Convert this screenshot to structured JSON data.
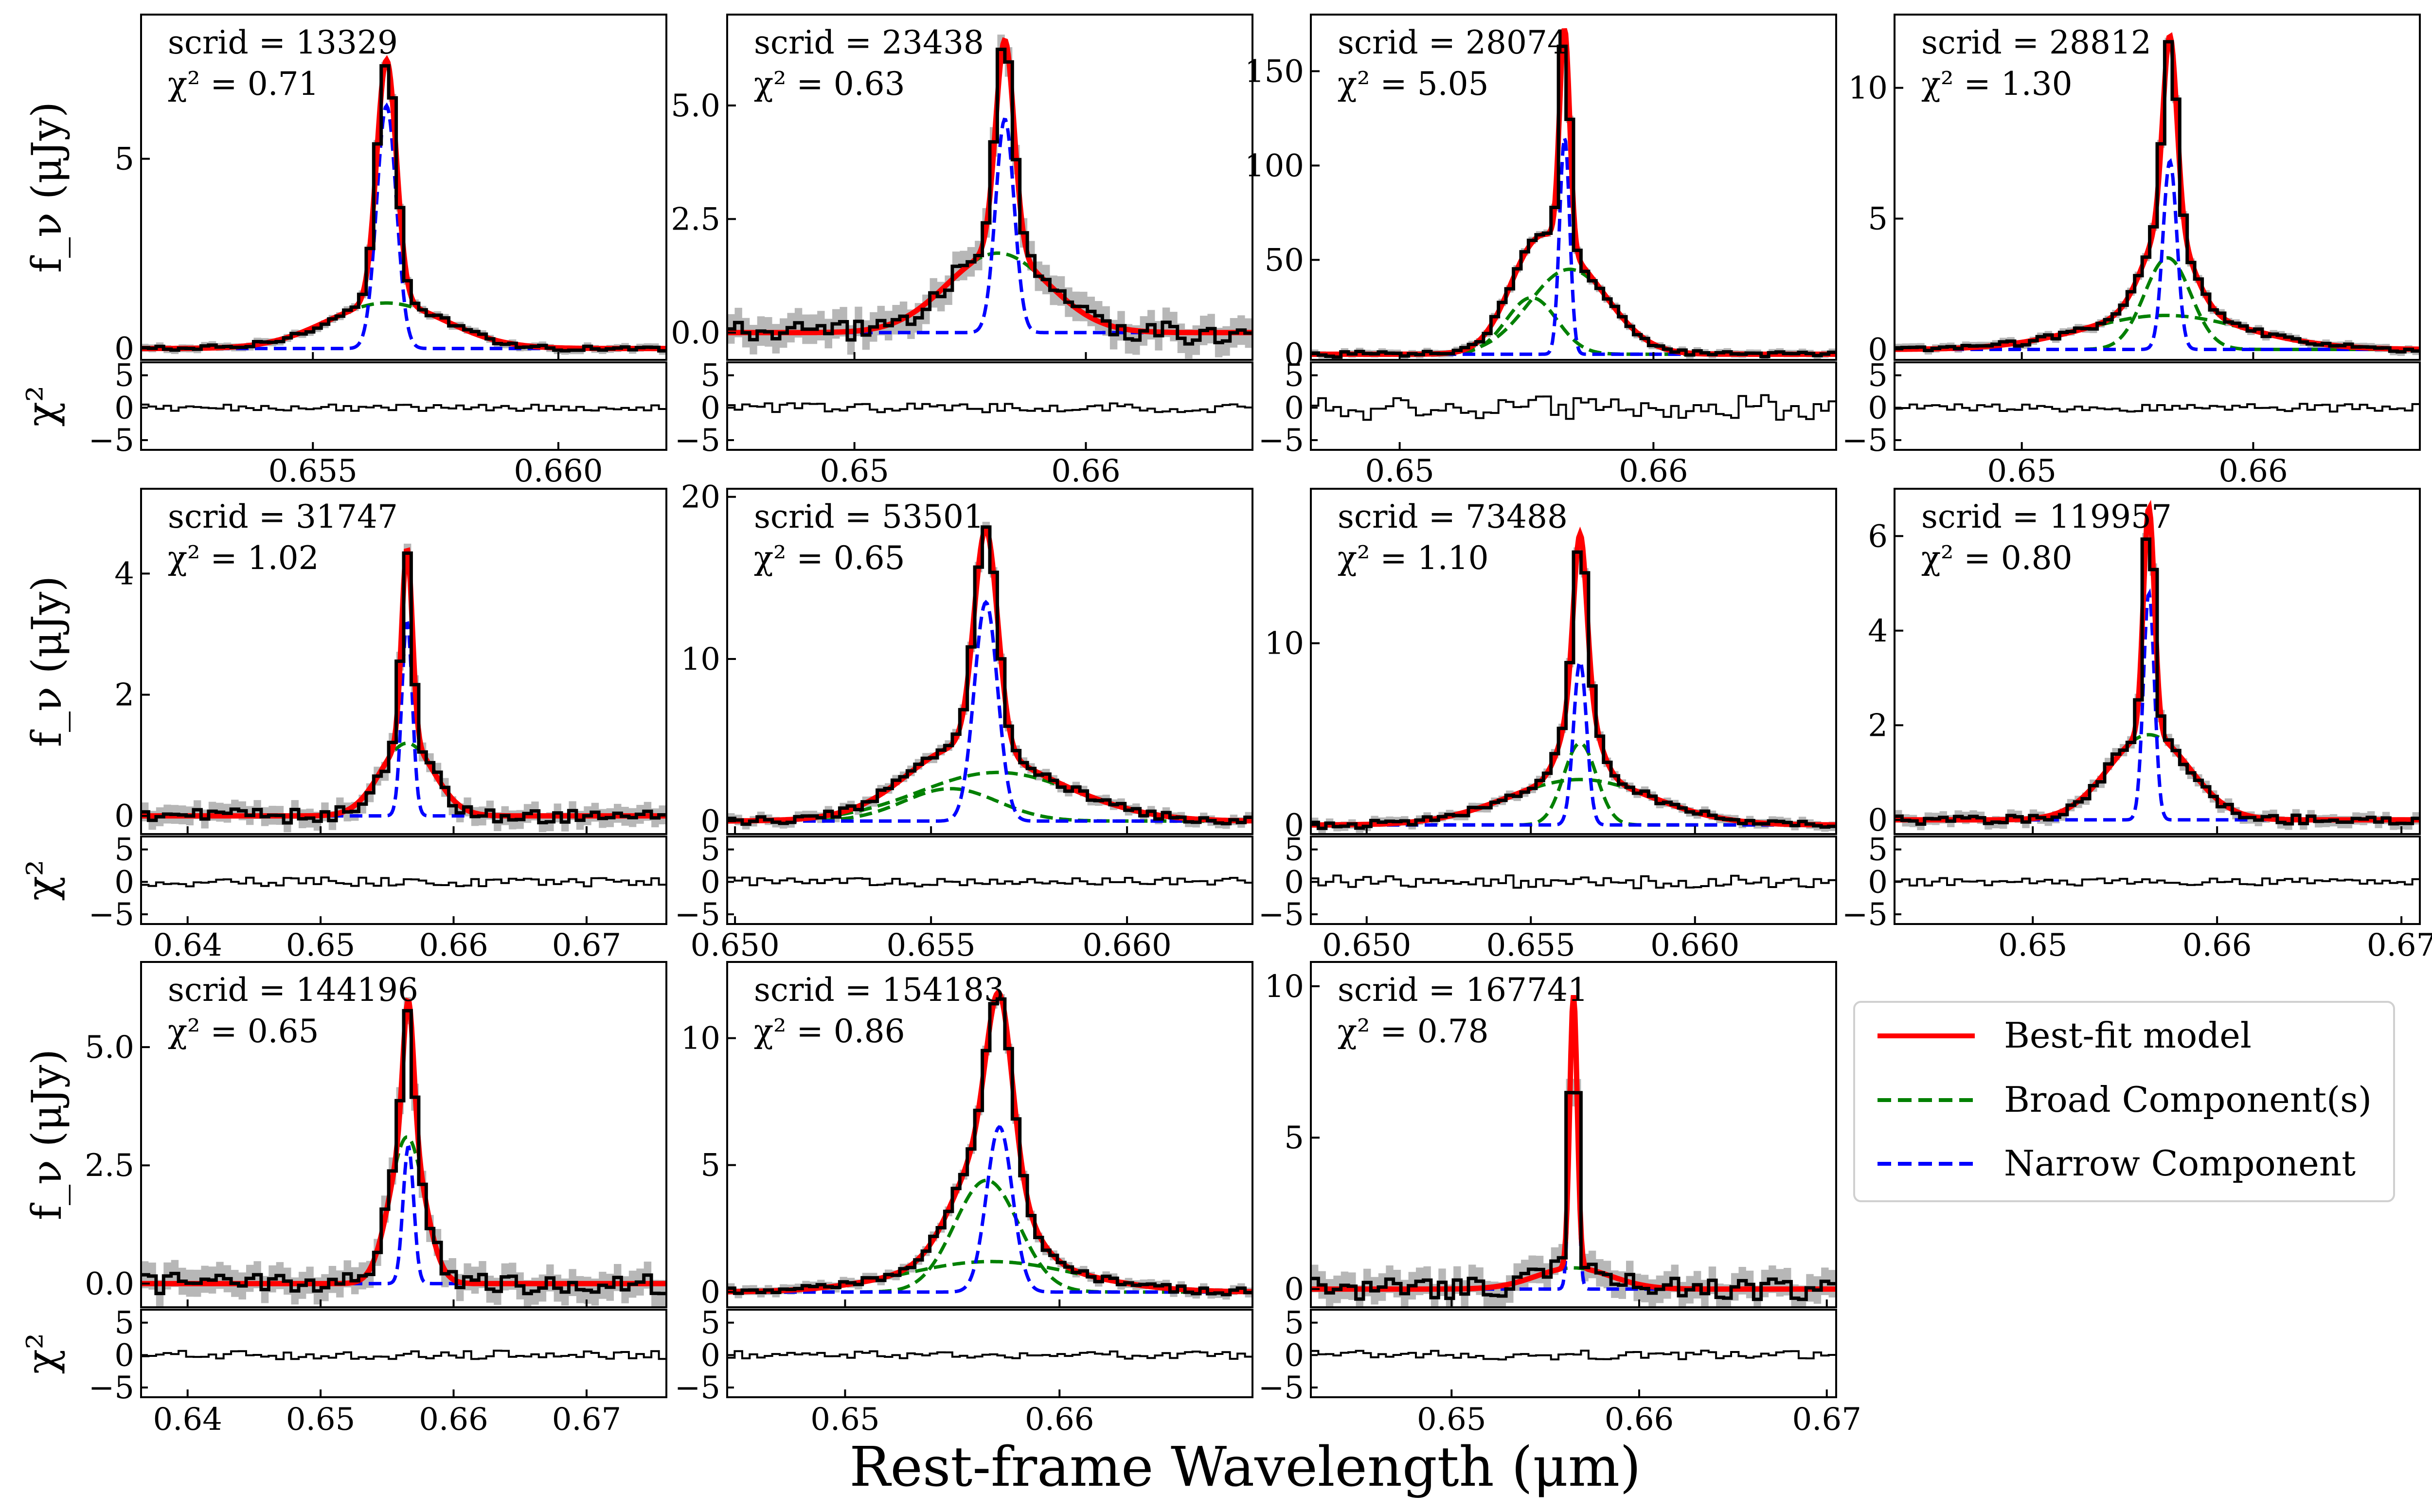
{
  "figure": {
    "xlabel": "Rest-frame Wavelength (μm)",
    "ylabel_flux": "f_ν (μJy)",
    "ylabel_resid": "χ²",
    "legend": [
      {
        "label": "Best-fit model",
        "color": "#ff0000",
        "dash": "solid"
      },
      {
        "label": "Broad Component(s)",
        "color": "#008000",
        "dash": "dashed"
      },
      {
        "label": "Narrow Component",
        "color": "#0000ff",
        "dash": "dashed"
      }
    ],
    "colors": {
      "model": "#ff0000",
      "broad": "#008000",
      "narrow": "#0000ff",
      "data": "#000000",
      "error_band": "#999999"
    }
  },
  "chart_data": [
    {
      "type": "line",
      "scrid": "13329",
      "chi2": "0.71",
      "xlim": [
        0.6515,
        0.6622
      ],
      "xticks": [
        0.655,
        0.66
      ],
      "xtick_labels": [
        "0.655",
        "0.660"
      ],
      "ylim": [
        -0.3,
        8.8
      ],
      "yticks": [
        0,
        5
      ],
      "ytick_labels": [
        "0",
        "5"
      ],
      "resid_ylim": [
        -6.5,
        7
      ],
      "resid_yticks": [
        -5,
        0,
        5
      ],
      "resid_ytick_labels": [
        "−5",
        "0",
        "5"
      ],
      "center": 0.6564,
      "narrow": [
        {
          "amp": 6.4,
          "center": 0.6565,
          "sigma": 0.0002
        }
      ],
      "broad": [
        {
          "amp": 1.2,
          "center": 0.6565,
          "sigma": 0.0012
        }
      ],
      "data_scale": 1.0,
      "noise": 0.08,
      "resid_amp": 0.5
    },
    {
      "type": "line",
      "scrid": "23438",
      "chi2": "0.63",
      "xlim": [
        0.6445,
        0.6672
      ],
      "xticks": [
        0.65,
        0.66
      ],
      "xtick_labels": [
        "0.65",
        "0.66"
      ],
      "ylim": [
        -0.6,
        7.0
      ],
      "yticks": [
        0,
        2.5,
        5
      ],
      "ytick_labels": [
        "0.0",
        "2.5",
        "5.0"
      ],
      "resid_ylim": [
        -6.5,
        7
      ],
      "resid_yticks": [
        -5,
        0,
        5
      ],
      "resid_ytick_labels": [
        "−5",
        "0",
        "5"
      ],
      "center": 0.6564,
      "narrow": [
        {
          "amp": 4.7,
          "center": 0.6565,
          "sigma": 0.0004
        }
      ],
      "broad": [
        {
          "amp": 1.75,
          "center": 0.6562,
          "sigma": 0.0022
        }
      ],
      "data_scale": 1.0,
      "noise": 0.25,
      "resid_amp": 0.7
    },
    {
      "type": "line",
      "scrid": "28074",
      "chi2": "5.05",
      "xlim": [
        0.6465,
        0.6672
      ],
      "xticks": [
        0.65,
        0.66
      ],
      "xtick_labels": [
        "0.65",
        "0.66"
      ],
      "ylim": [
        -3,
        180
      ],
      "yticks": [
        0,
        50,
        100,
        150
      ],
      "ytick_labels": [
        "0",
        "50",
        "100",
        "150"
      ],
      "resid_ylim": [
        -6.5,
        7
      ],
      "resid_yticks": [
        -5,
        0,
        5
      ],
      "resid_ytick_labels": [
        "−5",
        "0",
        "5"
      ],
      "center": 0.6565,
      "narrow": [
        {
          "amp": 115,
          "center": 0.6565,
          "sigma": 0.0002
        }
      ],
      "broad": [
        {
          "amp": 45,
          "center": 0.6567,
          "sigma": 0.0016
        },
        {
          "amp": 30,
          "center": 0.6552,
          "sigma": 0.001
        }
      ],
      "data_scale": 1.0,
      "noise": 1.5,
      "resid_amp": 2.0
    },
    {
      "type": "line",
      "scrid": "28812",
      "chi2": "1.30",
      "xlim": [
        0.6445,
        0.6672
      ],
      "xticks": [
        0.65,
        0.66
      ],
      "xtick_labels": [
        "0.65",
        "0.66"
      ],
      "ylim": [
        -0.4,
        12.8
      ],
      "yticks": [
        0,
        5,
        10
      ],
      "ytick_labels": [
        "0",
        "5",
        "10"
      ],
      "resid_ylim": [
        -6.5,
        7
      ],
      "resid_yticks": [
        -5,
        0,
        5
      ],
      "resid_ytick_labels": [
        "−5",
        "0",
        "5"
      ],
      "center": 0.6563,
      "narrow": [
        {
          "amp": 7.2,
          "center": 0.6564,
          "sigma": 0.0003
        }
      ],
      "broad": [
        {
          "amp": 3.5,
          "center": 0.6563,
          "sigma": 0.001
        },
        {
          "amp": 1.3,
          "center": 0.6562,
          "sigma": 0.0035
        }
      ],
      "data_scale": 1.0,
      "noise": 0.12,
      "resid_amp": 0.6
    },
    {
      "type": "line",
      "scrid": "31747",
      "chi2": "1.02",
      "xlim": [
        0.6365,
        0.676
      ],
      "xticks": [
        0.64,
        0.65,
        0.66,
        0.67
      ],
      "xtick_labels": [
        "0.64",
        "0.65",
        "0.66",
        "0.67"
      ],
      "ylim": [
        -0.3,
        5.4
      ],
      "yticks": [
        0,
        2,
        4
      ],
      "ytick_labels": [
        "0",
        "2",
        "4"
      ],
      "resid_ylim": [
        -6.5,
        7
      ],
      "resid_yticks": [
        -5,
        0,
        5
      ],
      "resid_ytick_labels": [
        "−5",
        "0",
        "5"
      ],
      "center": 0.6565,
      "narrow": [
        {
          "amp": 3.2,
          "center": 0.6565,
          "sigma": 0.0004
        }
      ],
      "broad": [
        {
          "amp": 1.2,
          "center": 0.6565,
          "sigma": 0.002
        }
      ],
      "data_scale": 1.0,
      "noise": 0.12,
      "resid_amp": 0.7
    },
    {
      "type": "line",
      "scrid": "53501",
      "chi2": "0.65",
      "xlim": [
        0.6498,
        0.6632
      ],
      "xticks": [
        0.65,
        0.655,
        0.66
      ],
      "xtick_labels": [
        "0.650",
        "0.655",
        "0.660"
      ],
      "ylim": [
        -0.8,
        20.5
      ],
      "yticks": [
        0,
        10,
        20
      ],
      "ytick_labels": [
        "0",
        "10",
        "20"
      ],
      "resid_ylim": [
        -6.5,
        7
      ],
      "resid_yticks": [
        -5,
        0,
        5
      ],
      "resid_ytick_labels": [
        "−5",
        "0",
        "5"
      ],
      "center": 0.6564,
      "narrow": [
        {
          "amp": 13.5,
          "center": 0.6564,
          "sigma": 0.0003
        }
      ],
      "broad": [
        {
          "amp": 3.0,
          "center": 0.6567,
          "sigma": 0.002
        },
        {
          "amp": 2.0,
          "center": 0.6555,
          "sigma": 0.0012
        }
      ],
      "data_scale": 1.0,
      "noise": 0.25,
      "resid_amp": 0.7
    },
    {
      "type": "line",
      "scrid": "73488",
      "chi2": "1.10",
      "xlim": [
        0.6483,
        0.6643
      ],
      "xticks": [
        0.65,
        0.655,
        0.66
      ],
      "xtick_labels": [
        "0.650",
        "0.655",
        "0.660"
      ],
      "ylim": [
        -0.5,
        18.5
      ],
      "yticks": [
        0,
        10
      ],
      "ytick_labels": [
        "0",
        "10"
      ],
      "resid_ylim": [
        -6.5,
        7
      ],
      "resid_yticks": [
        -5,
        0,
        5
      ],
      "resid_ytick_labels": [
        "−5",
        "0",
        "5"
      ],
      "center": 0.6565,
      "narrow": [
        {
          "amp": 9.0,
          "center": 0.6565,
          "sigma": 0.0002
        }
      ],
      "broad": [
        {
          "amp": 4.5,
          "center": 0.6565,
          "sigma": 0.0005
        },
        {
          "amp": 2.5,
          "center": 0.6565,
          "sigma": 0.0022
        }
      ],
      "data_scale": 1.0,
      "noise": 0.2,
      "resid_amp": 1.0
    },
    {
      "type": "line",
      "scrid": "119957",
      "chi2": "0.80",
      "xlim": [
        0.6425,
        0.671
      ],
      "xticks": [
        0.65,
        0.66,
        0.67
      ],
      "xtick_labels": [
        "0.65",
        "0.66",
        "0.67"
      ],
      "ylim": [
        -0.3,
        7.0
      ],
      "yticks": [
        0,
        2,
        4,
        6
      ],
      "ytick_labels": [
        "0",
        "2",
        "4",
        "6"
      ],
      "resid_ylim": [
        -6.5,
        7
      ],
      "resid_yticks": [
        -5,
        0,
        5
      ],
      "resid_ytick_labels": [
        "−5",
        "0",
        "5"
      ],
      "center": 0.6563,
      "narrow": [
        {
          "amp": 4.8,
          "center": 0.6563,
          "sigma": 0.0003
        }
      ],
      "broad": [
        {
          "amp": 1.8,
          "center": 0.6563,
          "sigma": 0.0022
        }
      ],
      "data_scale": 1.0,
      "noise": 0.1,
      "resid_amp": 0.6
    },
    {
      "type": "line",
      "scrid": "144196",
      "chi2": "0.65",
      "xlim": [
        0.6365,
        0.676
      ],
      "xticks": [
        0.64,
        0.65,
        0.66,
        0.67
      ],
      "xtick_labels": [
        "0.64",
        "0.65",
        "0.66",
        "0.67"
      ],
      "ylim": [
        -0.5,
        6.8
      ],
      "yticks": [
        0,
        2.5,
        5
      ],
      "ytick_labels": [
        "0.0",
        "2.5",
        "5.0"
      ],
      "resid_ylim": [
        -6.5,
        7
      ],
      "resid_yticks": [
        -5,
        0,
        5
      ],
      "resid_ytick_labels": [
        "−5",
        "0",
        "5"
      ],
      "center": 0.6565,
      "narrow": [
        {
          "amp": 2.9,
          "center": 0.6566,
          "sigma": 0.0004
        }
      ],
      "broad": [
        {
          "amp": 3.1,
          "center": 0.6565,
          "sigma": 0.0013
        }
      ],
      "data_scale": 1.0,
      "noise": 0.22,
      "resid_amp": 0.7
    },
    {
      "type": "line",
      "scrid": "154183",
      "chi2": "0.86",
      "xlim": [
        0.6445,
        0.669
      ],
      "xticks": [
        0.65,
        0.66
      ],
      "xtick_labels": [
        "0.65",
        "0.66"
      ],
      "ylim": [
        -0.6,
        13.0
      ],
      "yticks": [
        0,
        5,
        10
      ],
      "ytick_labels": [
        "0",
        "5",
        "10"
      ],
      "resid_ylim": [
        -6.5,
        7
      ],
      "resid_yticks": [
        -5,
        0,
        5
      ],
      "resid_ytick_labels": [
        "−5",
        "0",
        "5"
      ],
      "center": 0.6568,
      "narrow": [
        {
          "amp": 6.5,
          "center": 0.6572,
          "sigma": 0.0006
        }
      ],
      "broad": [
        {
          "amp": 4.4,
          "center": 0.6566,
          "sigma": 0.0015
        },
        {
          "amp": 1.2,
          "center": 0.6568,
          "sigma": 0.004
        }
      ],
      "data_scale": 1.0,
      "noise": 0.15,
      "resid_amp": 0.6
    },
    {
      "type": "line",
      "scrid": "167741",
      "chi2": "0.78",
      "xlim": [
        0.6425,
        0.6705
      ],
      "xticks": [
        0.65,
        0.66,
        0.67
      ],
      "xtick_labels": [
        "0.65",
        "0.66",
        "0.67"
      ],
      "ylim": [
        -0.6,
        10.8
      ],
      "yticks": [
        0,
        5,
        10
      ],
      "ytick_labels": [
        "0",
        "5",
        "10"
      ],
      "resid_ylim": [
        -6.5,
        7
      ],
      "resid_yticks": [
        -5,
        0,
        5
      ],
      "resid_ytick_labels": [
        "−5",
        "0",
        "5"
      ],
      "center": 0.6565,
      "narrow": [
        {
          "amp": 9.0,
          "center": 0.6565,
          "sigma": 0.0002
        }
      ],
      "broad": [
        {
          "amp": 0.7,
          "center": 0.6565,
          "sigma": 0.002
        }
      ],
      "data_scale": 1.0,
      "noise": 0.35,
      "resid_amp": 0.7
    }
  ]
}
